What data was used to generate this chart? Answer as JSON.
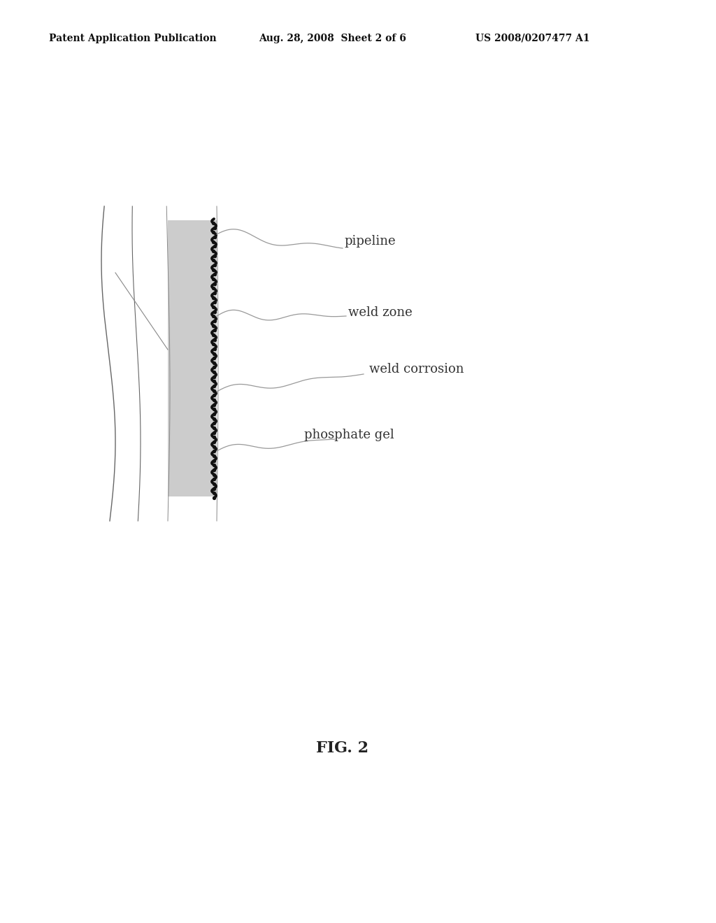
{
  "bg_color": "#ffffff",
  "header_left": "Patent Application Publication",
  "header_center": "Aug. 28, 2008  Sheet 2 of 6",
  "header_right": "US 2008/0207477 A1",
  "fig_label": "FIG. 2",
  "labels": {
    "pipeline": "pipeline",
    "weld_zone": "weld zone",
    "weld_corrosion": "weld corrosion",
    "phosphate_gel": "phosphate gel"
  },
  "header_fontsize": 10,
  "label_fontsize": 13,
  "fig_label_fontsize": 16,
  "line_color": "#999999",
  "gel_color": "#cccccc",
  "weld_color": "#111111",
  "text_color": "#333333"
}
